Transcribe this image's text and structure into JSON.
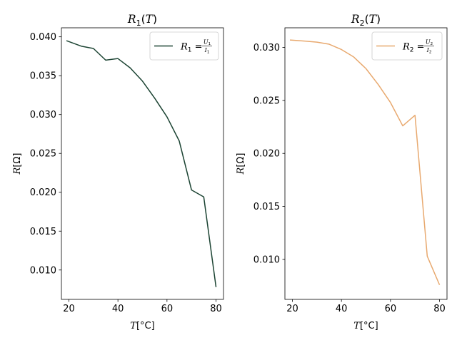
{
  "chart_data": [
    {
      "type": "line",
      "title": "R",
      "title_sub": "1",
      "title_arg": "(T)",
      "xlabel": "T[°C]",
      "ylabel": "R[Ω]",
      "xlim": [
        16.95,
        83.05
      ],
      "ylim": [
        0.00622,
        0.04116
      ],
      "xticks": [
        20,
        40,
        60,
        80
      ],
      "yticks": [
        0.01,
        0.015,
        0.02,
        0.025,
        0.03,
        0.035,
        0.04
      ],
      "ytick_labels": [
        "0.010",
        "0.015",
        "0.020",
        "0.025",
        "0.030",
        "0.035",
        "0.040"
      ],
      "legend_position": "top-right",
      "grid": false,
      "series": [
        {
          "name": "R1 = U1/I1",
          "legend_text": {
            "lhs": "R",
            "lhs_sub": "1",
            "eq": "=",
            "num": "U",
            "num_sub": "1",
            "den": "I",
            "den_sub": "1"
          },
          "color": "#1b4332",
          "x": [
            19,
            25,
            30,
            35,
            40,
            45,
            50,
            55,
            60,
            65,
            70,
            75,
            80
          ],
          "y": [
            0.0395,
            0.0388,
            0.0385,
            0.037,
            0.0372,
            0.036,
            0.0343,
            0.0321,
            0.0297,
            0.0266,
            0.0203,
            0.0194,
            0.0078
          ]
        }
      ]
    },
    {
      "type": "line",
      "title": "R",
      "title_sub": "2",
      "title_arg": "(T)",
      "xlabel": "T[°C]",
      "ylabel": "R[Ω]",
      "xlim": [
        16.95,
        83.05
      ],
      "ylim": [
        0.00623,
        0.03185
      ],
      "xticks": [
        20,
        40,
        60,
        80
      ],
      "yticks": [
        0.01,
        0.015,
        0.02,
        0.025,
        0.03
      ],
      "ytick_labels": [
        "0.010",
        "0.015",
        "0.020",
        "0.025",
        "0.030"
      ],
      "legend_position": "top-right",
      "grid": false,
      "series": [
        {
          "name": "R2 = U2/I2",
          "legend_text": {
            "lhs": "R",
            "lhs_sub": "2",
            "eq": "=",
            "num": "U",
            "num_sub": "2",
            "den": "I",
            "den_sub": "2"
          },
          "color": "#e8a96f",
          "x": [
            19,
            25,
            30,
            35,
            40,
            45,
            50,
            55,
            60,
            65,
            70,
            75,
            80
          ],
          "y": [
            0.0307,
            0.0306,
            0.0305,
            0.0303,
            0.0298,
            0.0291,
            0.028,
            0.0265,
            0.0248,
            0.0226,
            0.0236,
            0.0103,
            0.0076
          ]
        }
      ]
    }
  ]
}
